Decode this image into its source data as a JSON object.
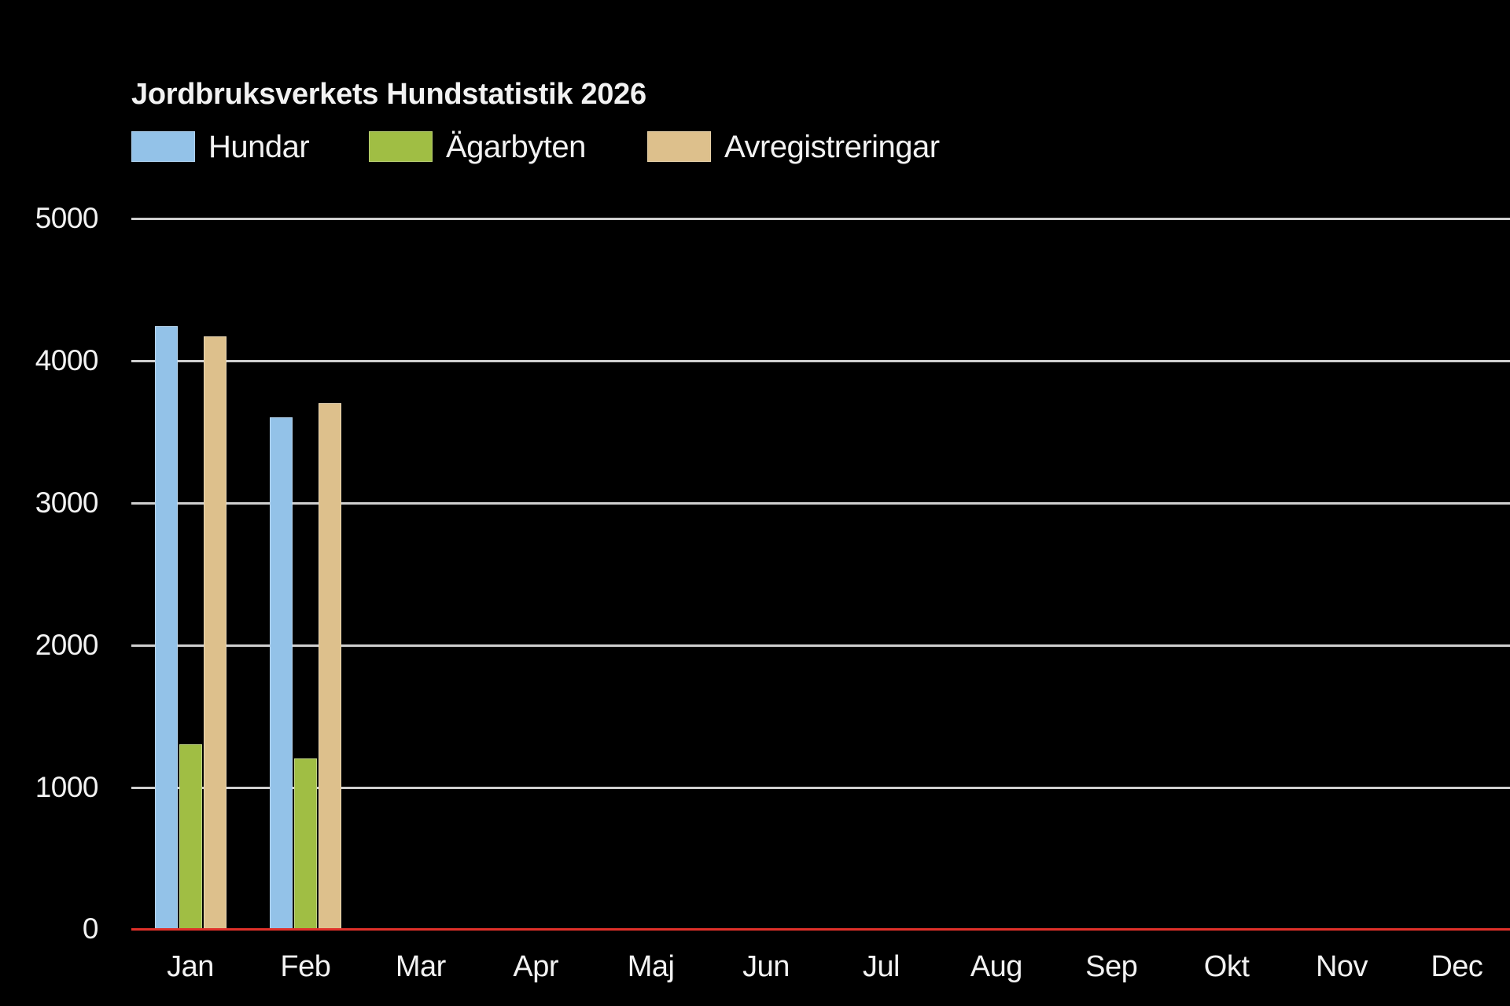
{
  "title": "Jordbruksverkets Hundstatistik 2026",
  "legend": [
    {
      "label": "Hundar",
      "color": "#93C2E8"
    },
    {
      "label": "Ägarbyten",
      "color": "#A0BE44"
    },
    {
      "label": "Avregistreringar",
      "color": "#DDC08C"
    }
  ],
  "y_ticks": [
    "5000",
    "4000",
    "3000",
    "2000",
    "1000",
    "0"
  ],
  "months": [
    "Jan",
    "Feb",
    "Mar",
    "Apr",
    "Maj",
    "Jun",
    "Jul",
    "Aug",
    "Sep",
    "Okt",
    "Nov",
    "Dec"
  ],
  "colors": {
    "background": "#000000",
    "grid": "#CFCFCF",
    "zero_line": "#E0302A",
    "text": "#F2F2F2"
  },
  "chart_data": {
    "type": "bar",
    "title": "Jordbruksverkets Hundstatistik 2026",
    "categories": [
      "Jan",
      "Feb",
      "Mar",
      "Apr",
      "Maj",
      "Jun",
      "Jul",
      "Aug",
      "Sep",
      "Okt",
      "Nov",
      "Dec"
    ],
    "series": [
      {
        "name": "Hundar",
        "color": "#93C2E8",
        "values": [
          4240,
          3600,
          null,
          null,
          null,
          null,
          null,
          null,
          null,
          null,
          null,
          null
        ]
      },
      {
        "name": "Ägarbyten",
        "color": "#A0BE44",
        "values": [
          1300,
          1200,
          null,
          null,
          null,
          null,
          null,
          null,
          null,
          null,
          null,
          null
        ]
      },
      {
        "name": "Avregistreringar",
        "color": "#DDC08C",
        "values": [
          4170,
          3700,
          null,
          null,
          null,
          null,
          null,
          null,
          null,
          null,
          null,
          null
        ]
      }
    ],
    "xlabel": "",
    "ylabel": "",
    "ylim": [
      0,
      5000
    ],
    "yticks": [
      0,
      1000,
      2000,
      3000,
      4000,
      5000
    ],
    "grid": true,
    "legend_position": "top-left"
  }
}
